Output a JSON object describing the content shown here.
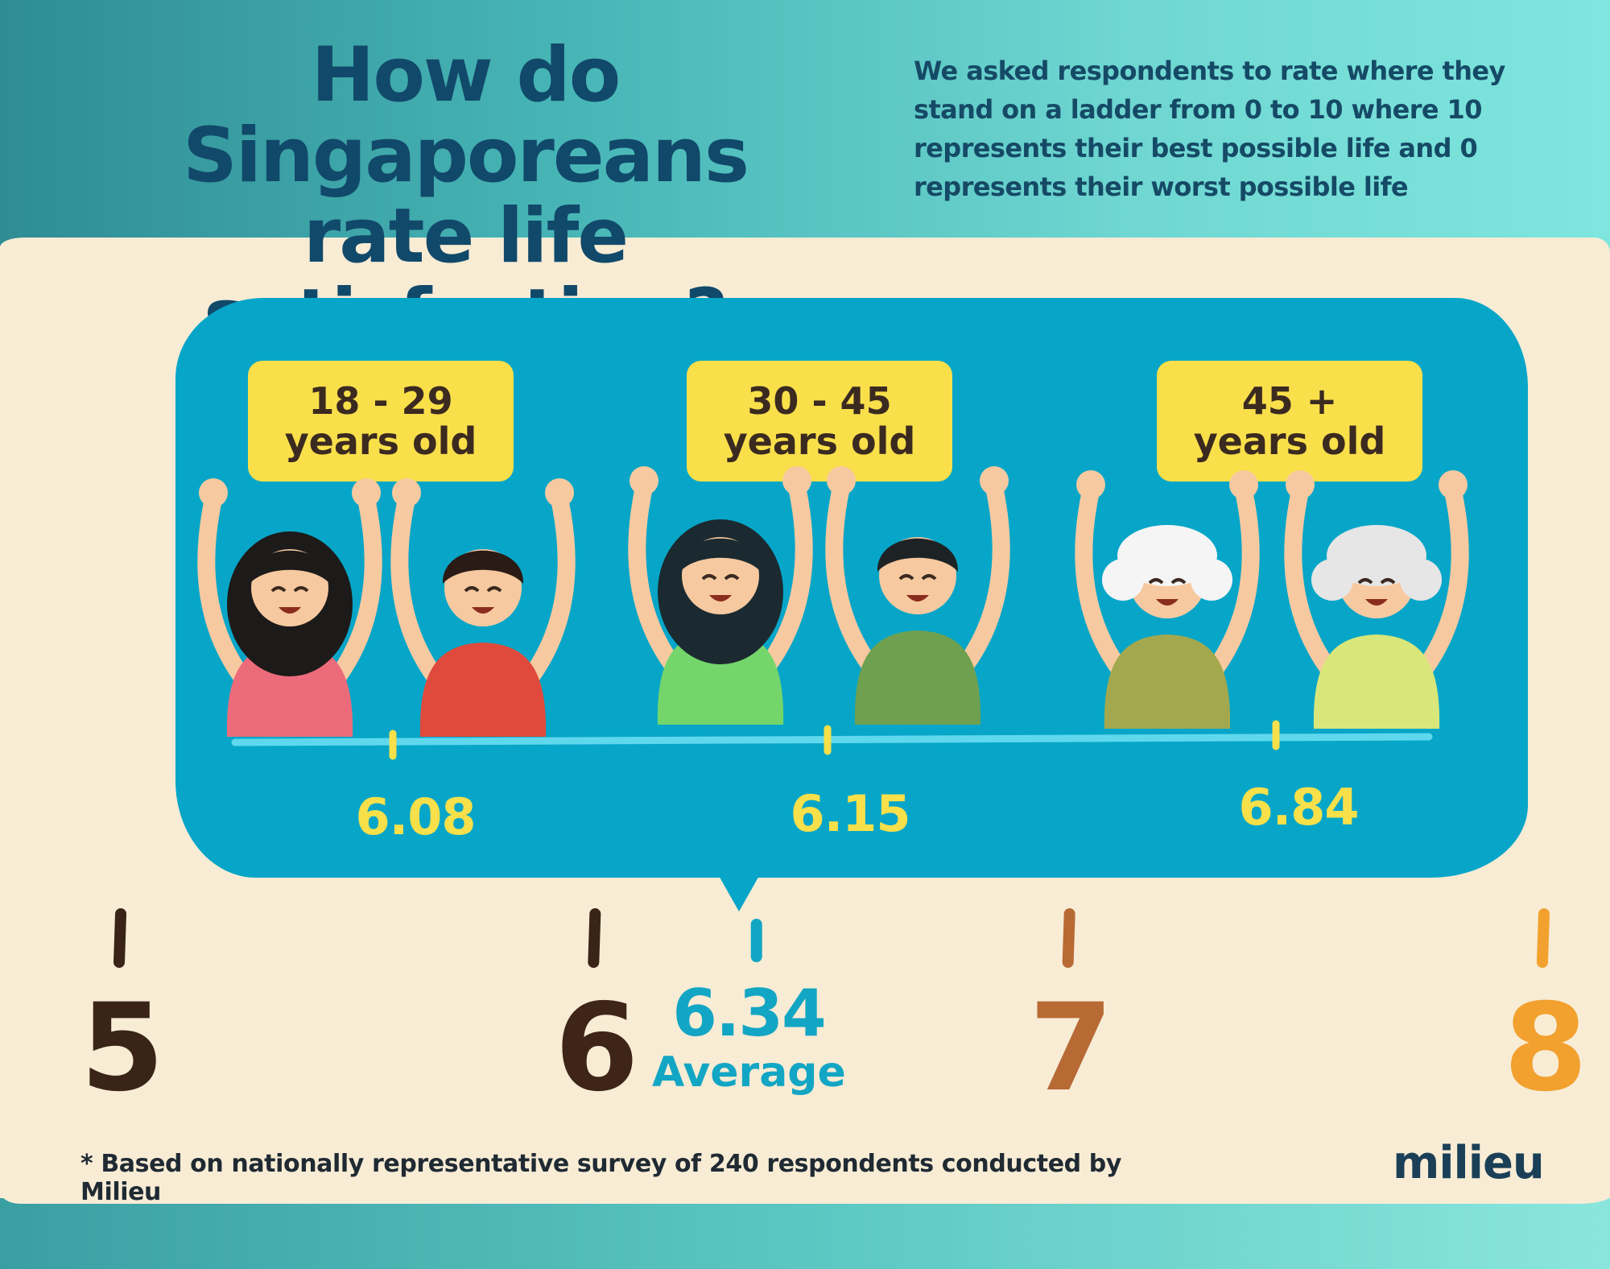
{
  "header": {
    "title_line1": "How do Singaporeans",
    "title_line2": "rate life satisfaction?",
    "subtitle": "We asked respondents to rate where they stand on a ladder from 0 to 10 where 10 represents their best possible life and 0 represents their worst possible life"
  },
  "groups": [
    {
      "line1": "18 - 29",
      "line2": "years old",
      "value": "6.08",
      "shirt1": "#ec6b7a",
      "shirt2": "#df4a3c",
      "hair1": "#1d1a1a",
      "hair2": "#2a1b16"
    },
    {
      "line1": "30 - 45",
      "line2": "years old",
      "value": "6.15",
      "shirt1": "#74d66a",
      "shirt2": "#6fa050",
      "hair1": "#1b2a30",
      "hair2": "#1d2325"
    },
    {
      "line1": "45 +",
      "line2": "years old",
      "value": "6.84",
      "shirt1": "#a3a84e",
      "shirt2": "#d9e77a",
      "hair1": "#f5f5f5",
      "hair2": "#e6e6e6"
    }
  ],
  "average": {
    "value": "6.34",
    "label": "Average"
  },
  "footnote": "* Based on nationally representative survey of 240 respondents conducted by Milieu",
  "brand": "milieu",
  "colors": {
    "panel": "#07a6c8",
    "accent_yellow": "#f7e04a",
    "title": "#11496a",
    "scale_start": "#3a2418",
    "scale_end": "#f2a12e"
  },
  "chart_data": {
    "type": "scatter",
    "title": "How do Singaporeans rate life satisfaction?",
    "xlim": [
      5,
      8
    ],
    "ticks": [
      "5",
      "6",
      "7",
      "8"
    ],
    "points": [
      {
        "label": "18 - 29 years old",
        "value": 6.08
      },
      {
        "label": "30 - 45 years old",
        "value": 6.15
      },
      {
        "label": "45 + years old",
        "value": 6.84
      },
      {
        "label": "Average",
        "value": 6.34
      }
    ]
  }
}
